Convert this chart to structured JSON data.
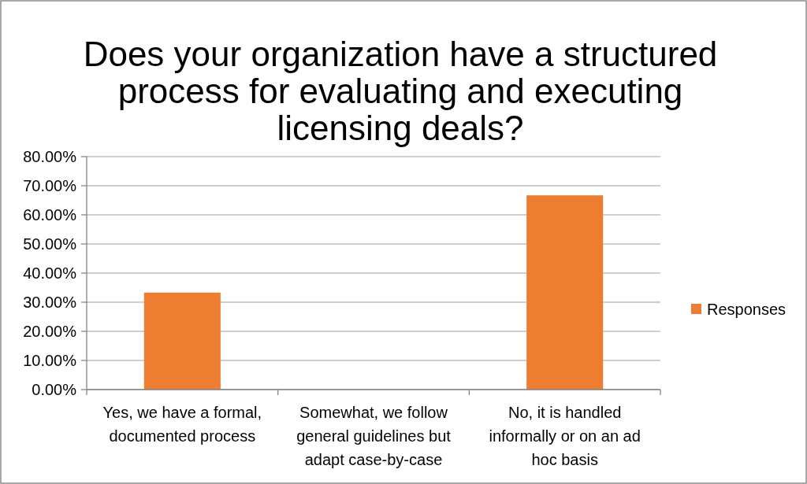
{
  "chart_data": {
    "type": "bar",
    "title": "Does your organization have a structured process for evaluating and executing licensing deals?",
    "categories": [
      "Yes, we have a formal, documented process",
      "Somewhat, we follow general guidelines but adapt case-by-case",
      "No, it is handled informally or on an ad hoc basis"
    ],
    "series": [
      {
        "name": "Responses",
        "color": "#ed7d31",
        "values": [
          33.3,
          0,
          66.7
        ]
      }
    ],
    "ylim": [
      0,
      80
    ],
    "yticks": [
      {
        "value": 0,
        "label": "0.00%"
      },
      {
        "value": 10,
        "label": "10.00%"
      },
      {
        "value": 20,
        "label": "20.00%"
      },
      {
        "value": 30,
        "label": "30.00%"
      },
      {
        "value": 40,
        "label": "40.00%"
      },
      {
        "value": 50,
        "label": "50.00%"
      },
      {
        "value": 60,
        "label": "60.00%"
      },
      {
        "value": 70,
        "label": "70.00%"
      },
      {
        "value": 80,
        "label": "80.00%"
      }
    ],
    "grid": "y",
    "legend": "right"
  }
}
